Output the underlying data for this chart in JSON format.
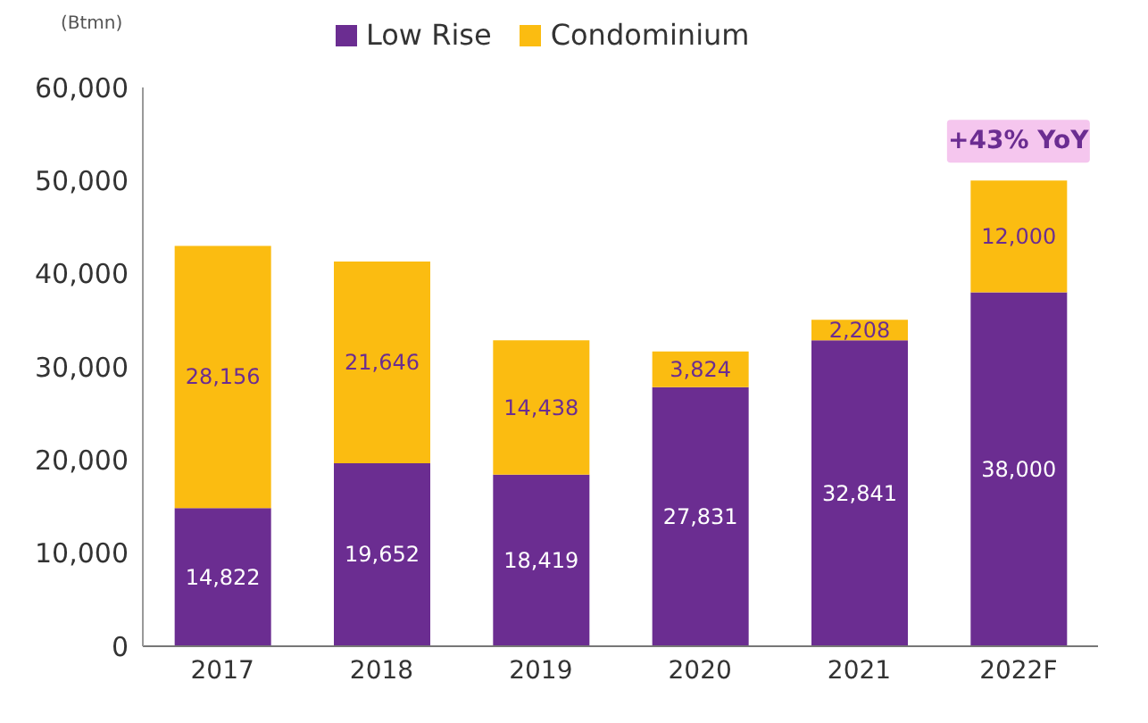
{
  "chart_data": {
    "type": "bar",
    "stacked": true,
    "ylabel": "(Btmn)",
    "categories": [
      "2017",
      "2018",
      "2019",
      "2020",
      "2021",
      "2022F"
    ],
    "series": [
      {
        "name": "Low Rise",
        "color": "#6b2d91",
        "values": [
          14822,
          19652,
          18419,
          27831,
          32841,
          38000
        ],
        "value_labels": [
          "14,822",
          "19,652",
          "18,419",
          "27,831",
          "32,841",
          "38,000"
        ]
      },
      {
        "name": "Condominium",
        "color": "#fbbc11",
        "values": [
          28156,
          21646,
          14438,
          3824,
          2208,
          12000
        ],
        "value_labels": [
          "28,156",
          "21,646",
          "14,438",
          "3,824",
          "2,208",
          "12,000"
        ]
      }
    ],
    "ylim": [
      0,
      60000
    ],
    "yticks": [
      {
        "value": 0,
        "label": "0"
      },
      {
        "value": 10000,
        "label": "10,000"
      },
      {
        "value": 20000,
        "label": "20,000"
      },
      {
        "value": 30000,
        "label": "30,000"
      },
      {
        "value": 40000,
        "label": "40,000"
      },
      {
        "value": 50000,
        "label": "50,000"
      },
      {
        "value": 60000,
        "label": "60,000"
      }
    ],
    "grid": false,
    "legend": "top",
    "annotations": [
      {
        "text": "+43% YoY",
        "x": "2022F",
        "y": 50000
      }
    ]
  }
}
